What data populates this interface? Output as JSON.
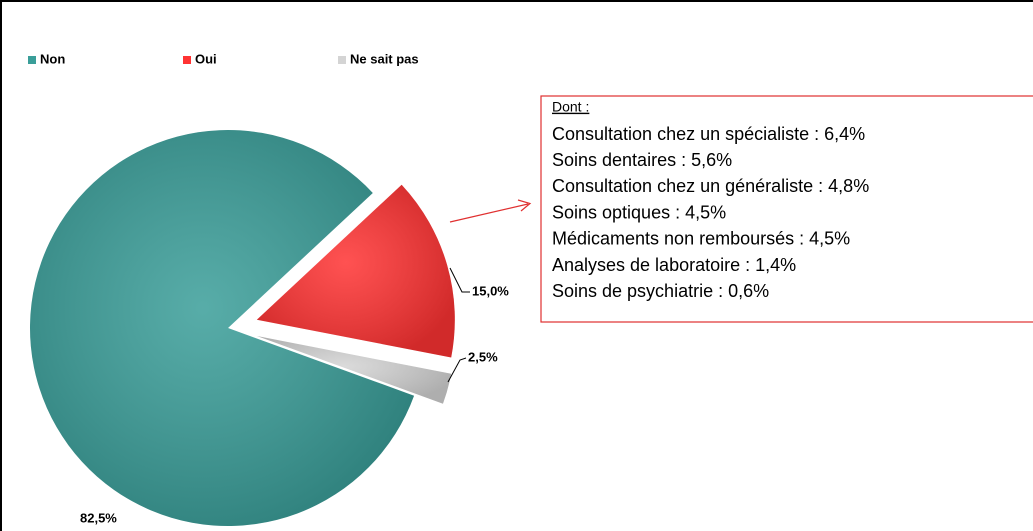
{
  "chart_data": {
    "type": "pie",
    "categories": [
      "Non",
      "Oui",
      "Ne sait pas"
    ],
    "values": [
      82.5,
      15.0,
      2.5
    ],
    "value_labels": [
      "82,5%",
      "15,0%",
      "2,5%"
    ],
    "colors": [
      "#3a9e99",
      "#ff3333",
      "#d4d4d4"
    ],
    "legend": "top",
    "annotation": {
      "title": "Dont :",
      "lines": [
        "Consultation chez un spécialiste : 6,4%",
        "Soins dentaires : 5,6%",
        "Consultation chez un généraliste : 4,8%",
        "Soins optiques : 4,5%",
        "Médicaments non remboursés : 4,5%",
        "Analyses de laboratoire : 1,4%",
        "Soins de psychiatrie : 0,6%"
      ]
    }
  }
}
